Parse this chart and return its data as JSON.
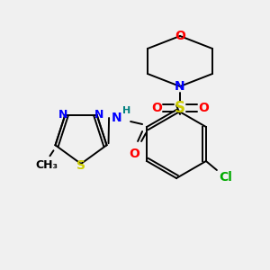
{
  "background_color": "#f0f0f0",
  "figsize": [
    3.0,
    3.0
  ],
  "dpi": 100,
  "colors": {
    "bond": "#000000",
    "O": "#ff0000",
    "N": "#0000ff",
    "S": "#cccc00",
    "Cl": "#00aa00",
    "C": "#000000",
    "H": "#008080"
  }
}
